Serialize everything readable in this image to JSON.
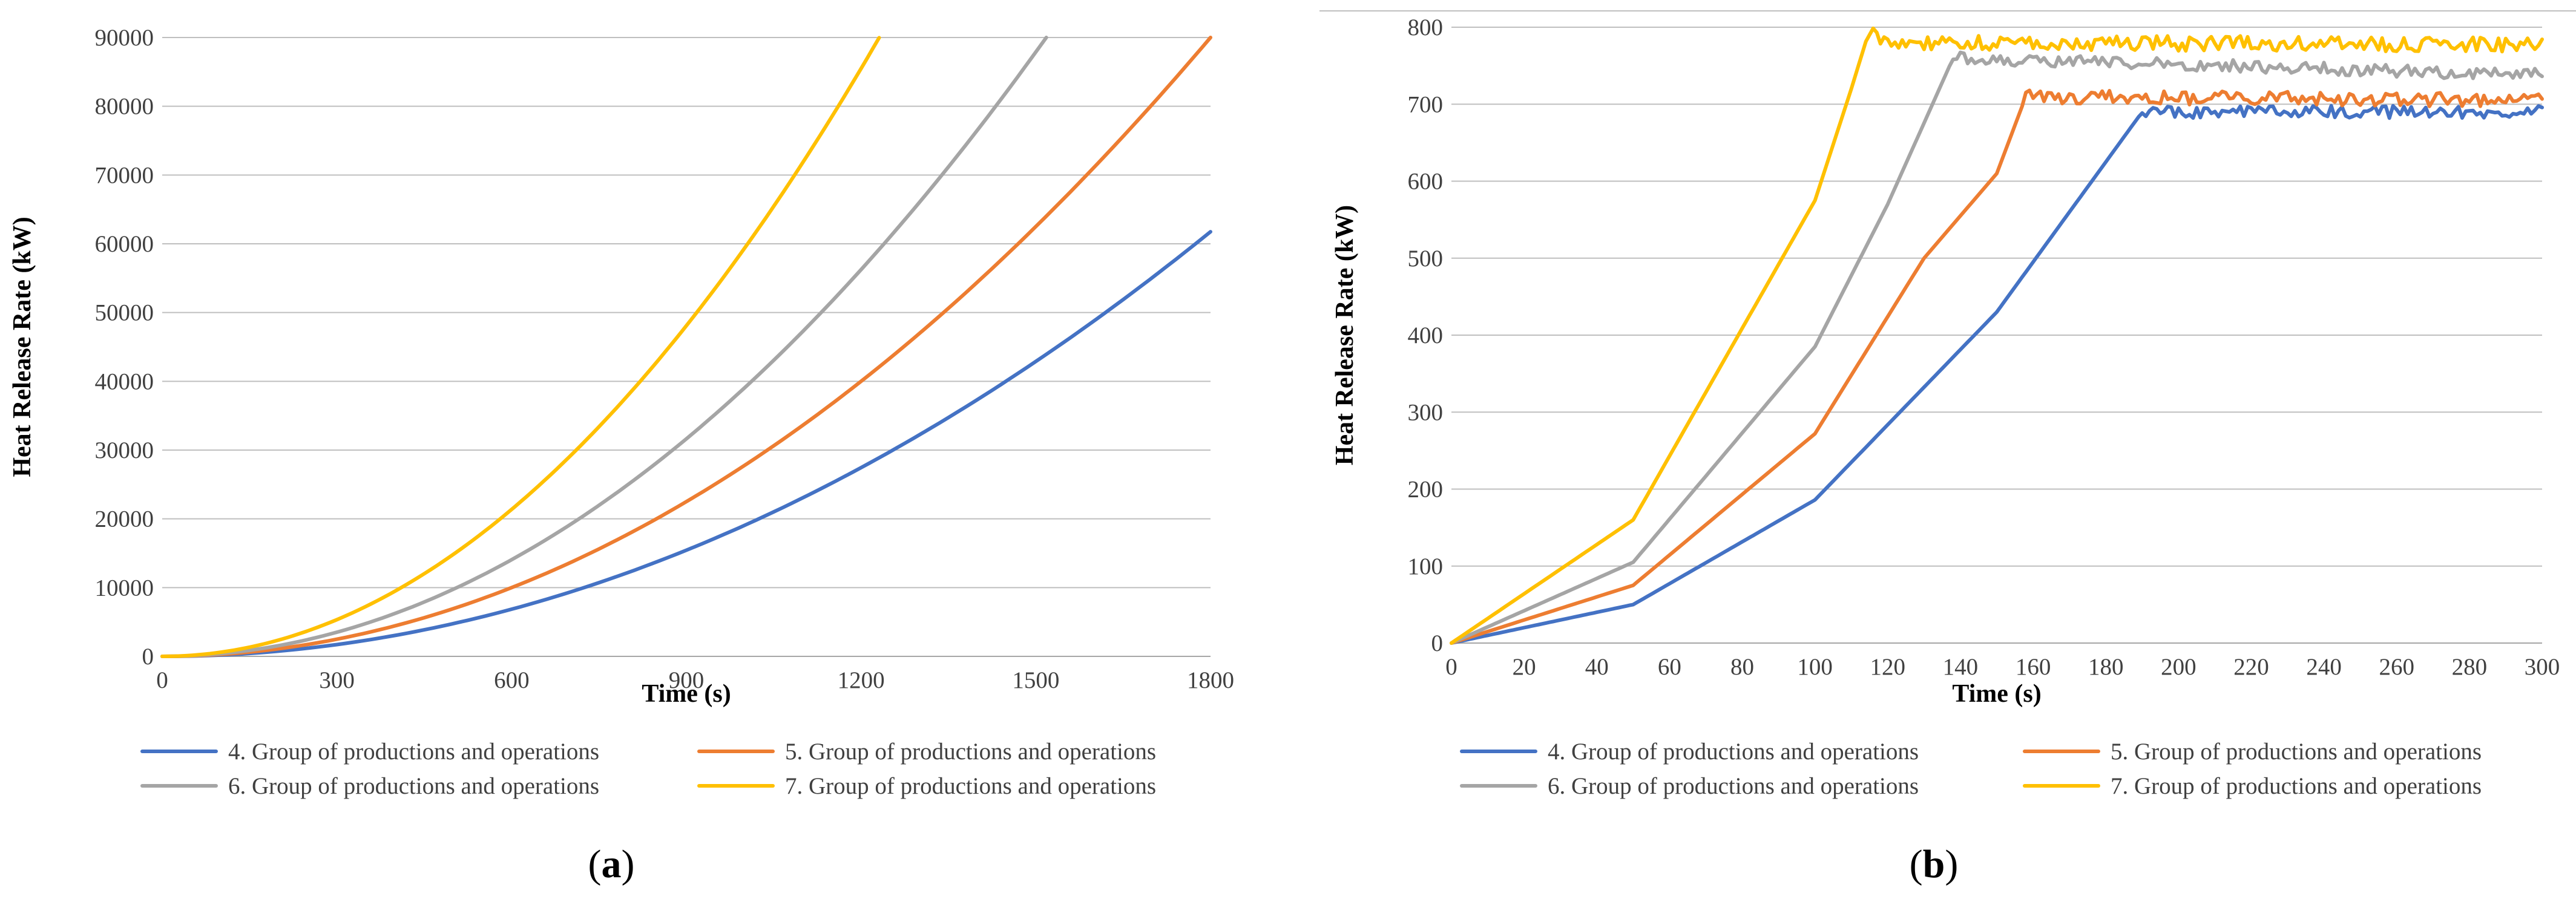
{
  "figure": {
    "panel_labels": [
      "a",
      "b"
    ]
  },
  "chart_data": [
    {
      "type": "line",
      "panel": "a",
      "title": "",
      "xlabel": "Time  (s)",
      "ylabel": "Heat Release Rate (kW)",
      "xlim": [
        0,
        1800
      ],
      "ylim": [
        0,
        90000
      ],
      "xticks": [
        0,
        300,
        600,
        900,
        1200,
        1500,
        1800
      ],
      "yticks": [
        0,
        10000,
        20000,
        30000,
        40000,
        50000,
        60000,
        70000,
        80000,
        90000
      ],
      "grid": "horizontal",
      "legend_position": "bottom",
      "series": [
        {
          "name": "4. Group of productions and operations",
          "color": "#4472C4",
          "model": "t2",
          "alpha": 0.01906,
          "noise": 0,
          "x": [
            0,
            100,
            200,
            300,
            400,
            500,
            600,
            700,
            800,
            900,
            1000,
            1100,
            1200,
            1300,
            1400,
            1500,
            1600,
            1700,
            1800
          ],
          "y": [
            0,
            190,
            762,
            1715,
            3050,
            4765,
            6862,
            9339,
            12198,
            15439,
            19060,
            23063,
            27446,
            32211,
            37358,
            42885,
            48794,
            55083,
            61754
          ]
        },
        {
          "name": "5. Group of productions and operations",
          "color": "#ED7D31",
          "model": "t2",
          "alpha": 0.02778,
          "noise": 0,
          "x": [
            0,
            100,
            200,
            300,
            400,
            500,
            600,
            700,
            800,
            900,
            1000,
            1100,
            1200,
            1300,
            1400,
            1500,
            1600,
            1700,
            1800
          ],
          "y": [
            0,
            278,
            1111,
            2500,
            4445,
            6945,
            10001,
            13612,
            17779,
            22502,
            27780,
            33614,
            40003,
            46948,
            54449,
            62505,
            71117,
            80284,
            90007
          ]
        },
        {
          "name": "6. Group of productions and operations",
          "color": "#A5A5A5",
          "model": "t2",
          "alpha": 0.03906,
          "noise": 0,
          "x": [
            0,
            100,
            200,
            300,
            400,
            500,
            600,
            700,
            800,
            900,
            1000,
            1100,
            1200,
            1300,
            1400,
            1500,
            1518
          ],
          "y": [
            0,
            391,
            1562,
            3515,
            6250,
            9765,
            14062,
            19139,
            24998,
            31639,
            39060,
            47263,
            56246,
            66011,
            76558,
            87885,
            90000
          ]
        },
        {
          "name": "7. Group of productions and operations",
          "color": "#FFC000",
          "model": "t2",
          "alpha": 0.05937,
          "noise": 0,
          "x": [
            0,
            100,
            200,
            300,
            400,
            500,
            600,
            700,
            800,
            900,
            1000,
            1100,
            1200,
            1231
          ],
          "y": [
            0,
            594,
            2375,
            5343,
            9499,
            14843,
            21373,
            29091,
            37997,
            48090,
            59370,
            71838,
            85493,
            90000
          ]
        }
      ]
    },
    {
      "type": "line",
      "panel": "b",
      "title": "",
      "xlabel": "Time  (s)",
      "ylabel": "Heat Release Rate (kW)",
      "xlim": [
        0,
        300
      ],
      "ylim": [
        0,
        800
      ],
      "xticks": [
        0,
        20,
        40,
        60,
        80,
        100,
        120,
        140,
        160,
        180,
        200,
        220,
        240,
        260,
        280,
        300
      ],
      "yticks": [
        0,
        100,
        200,
        300,
        400,
        500,
        600,
        700,
        800
      ],
      "grid": "horizontal",
      "legend_position": "bottom",
      "series": [
        {
          "name": "4. Group of productions and operations",
          "color": "#4472C4",
          "model": "piecewise",
          "noise": 8,
          "plateau_noise_start": 190,
          "x": [
            0,
            50,
            100,
            150,
            190,
            300
          ],
          "y": [
            0,
            50,
            186,
            430,
            690,
            690
          ]
        },
        {
          "name": "5. Group of productions and operations",
          "color": "#ED7D31",
          "model": "piecewise",
          "noise": 9,
          "plateau_noise_start": 158,
          "x": [
            0,
            50,
            100,
            130,
            150,
            158,
            300
          ],
          "y": [
            0,
            75,
            272,
            500,
            610,
            710,
            705
          ]
        },
        {
          "name": "6. Group of productions and operations",
          "color": "#A5A5A5",
          "model": "piecewise",
          "noise": 8,
          "plateau_noise_start": 138,
          "x": [
            0,
            50,
            100,
            120,
            138,
            300
          ],
          "y": [
            0,
            105,
            385,
            570,
            760,
            738
          ]
        },
        {
          "name": "7. Group of productions and operations",
          "color": "#FFC000",
          "model": "piecewise",
          "noise": 10,
          "plateau_noise_start": 115,
          "x": [
            0,
            50,
            100,
            110,
            115,
            120,
            300
          ],
          "y": [
            0,
            160,
            575,
            720,
            797,
            780,
            778
          ]
        }
      ]
    }
  ]
}
